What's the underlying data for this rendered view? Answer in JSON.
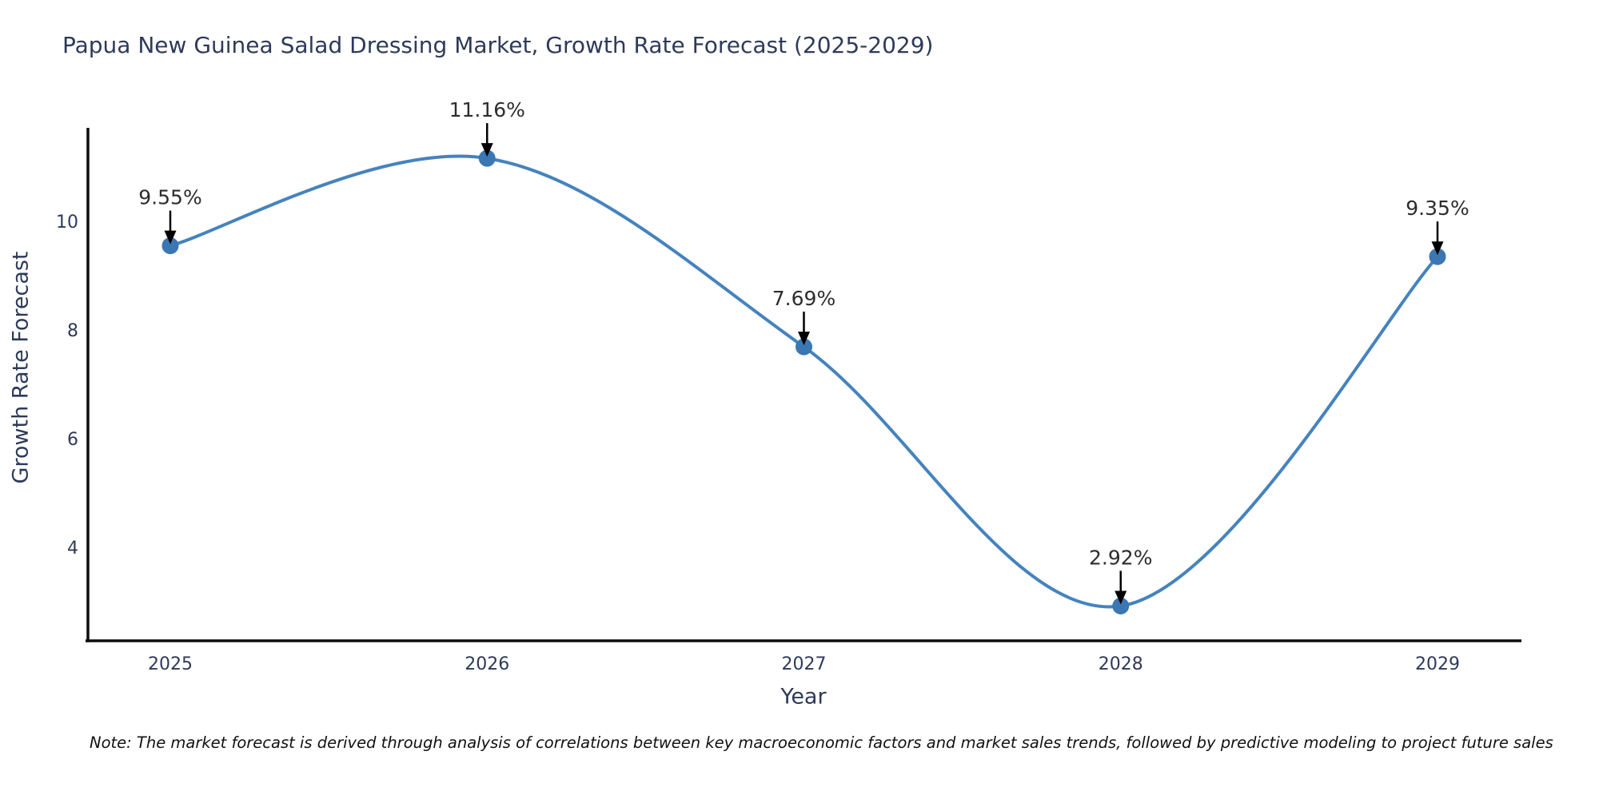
{
  "title": "Papua New Guinea Salad Dressing Market, Growth Rate Forecast (2025-2029)",
  "note": "Note: The market forecast is derived through analysis of correlations between key macroeconomic factors and market sales trends, followed by predictive modeling to project future sales",
  "chart_data": {
    "type": "line",
    "title": "Papua New Guinea Salad Dressing Market, Growth Rate Forecast (2025-2029)",
    "xlabel": "Year",
    "ylabel": "Growth Rate Forecast",
    "x": [
      2025,
      2026,
      2027,
      2028,
      2029
    ],
    "values": [
      9.55,
      11.16,
      7.69,
      2.92,
      9.35
    ],
    "point_labels": [
      "9.55%",
      "11.16%",
      "7.69%",
      "2.92%",
      "9.35%"
    ],
    "x_tick_labels": [
      "2025",
      "2026",
      "2027",
      "2028",
      "2029"
    ],
    "y_ticks": [
      4,
      6,
      8,
      10
    ],
    "ylim": [
      2.3,
      11.8
    ],
    "grid": false,
    "legend": "none",
    "annotation_style": "value label with downward arrow to marker",
    "colors": {
      "line": "#4583bd",
      "marker": "#3a77b3",
      "axis": "#0d0d0d",
      "tick_text": "#2e3a59",
      "annotation_text": "#2d2d2d",
      "arrow": "#000000"
    }
  }
}
